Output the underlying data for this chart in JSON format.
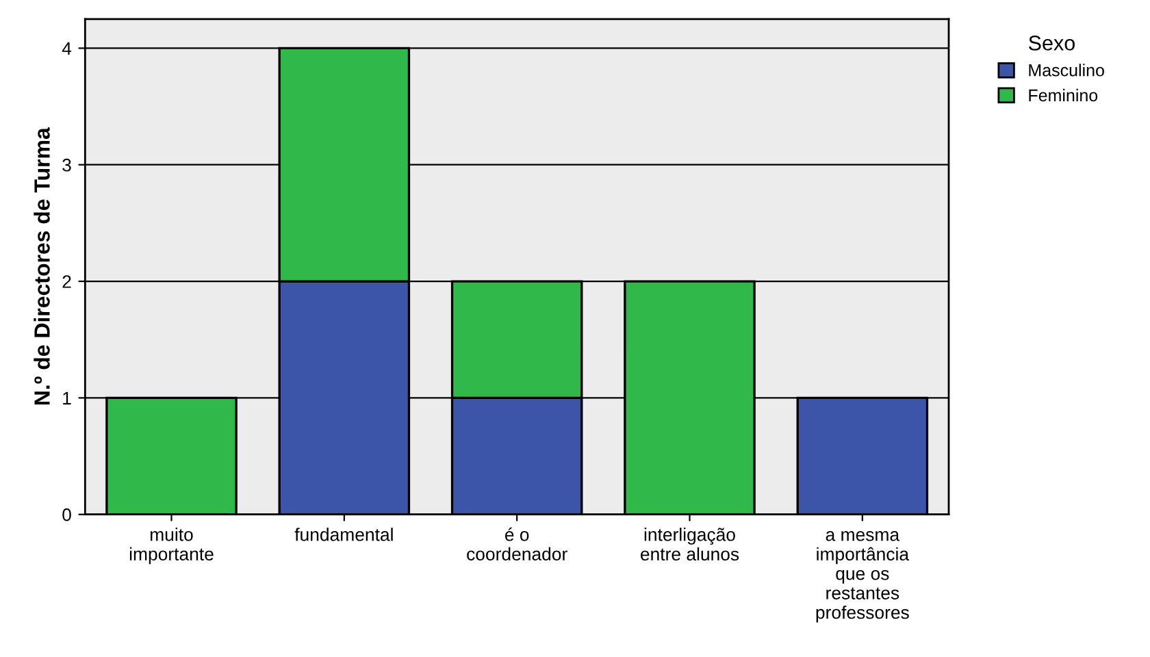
{
  "chart_data": {
    "type": "bar",
    "stacked": true,
    "ylabel": "N.º de Directores de Turma",
    "legend_title": "Sexo",
    "legend": "top right",
    "categories": [
      "muito\nimportante",
      "fundamental",
      "é o\ncoordenador",
      "interligação\nentre alunos",
      "a mesma\nimportância\nque os\nrestantes\nprofessores"
    ],
    "series": [
      {
        "name": "Masculino",
        "color": "#3d55a8",
        "values": [
          null,
          2,
          1,
          null,
          1
        ]
      },
      {
        "name": "Feminino",
        "color": "#30b84a",
        "values": [
          1,
          2,
          1,
          2,
          null
        ]
      }
    ],
    "ylim": [
      0,
      4.25
    ],
    "yticks": [
      0,
      1,
      2,
      3,
      4
    ],
    "grid": "y"
  }
}
